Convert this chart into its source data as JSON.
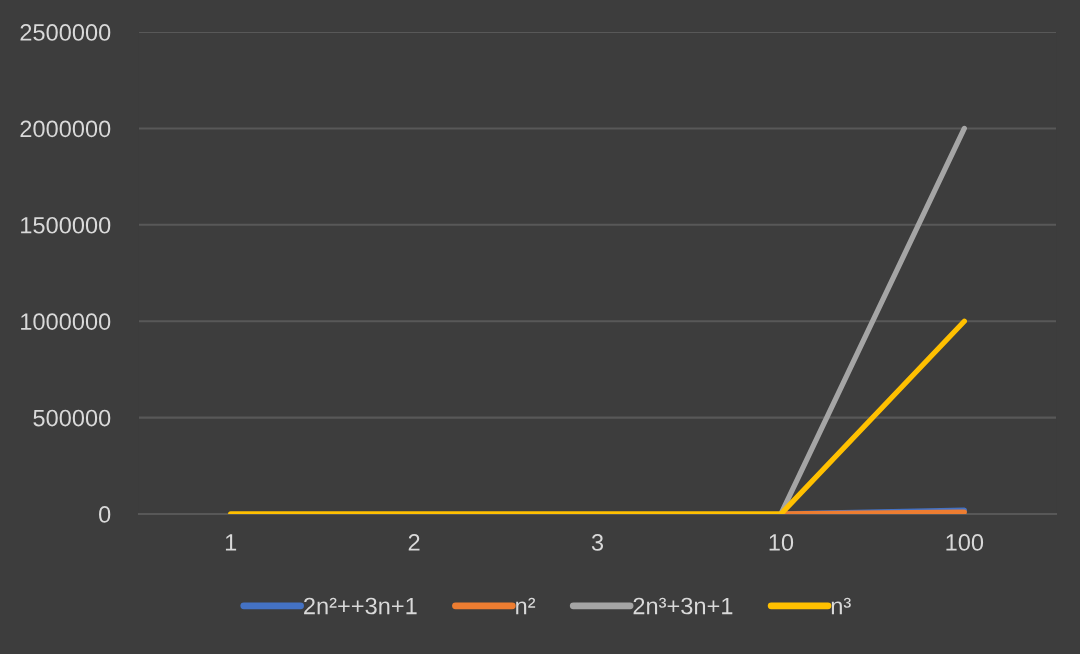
{
  "chart_data": {
    "type": "line",
    "categories": [
      "1",
      "2",
      "3",
      "10",
      "100"
    ],
    "series": [
      {
        "name": "2n²++3n+1",
        "color": "#4472c4",
        "values": [
          null,
          null,
          null,
          0,
          20000
        ]
      },
      {
        "name": "n²",
        "color": "#ed7d31",
        "values": [
          null,
          null,
          null,
          0,
          10000
        ]
      },
      {
        "name": "2n³+3n+1",
        "color": "#a5a5a5",
        "values": [
          null,
          null,
          null,
          0,
          2000000
        ]
      },
      {
        "name": "n³",
        "color": "#ffc000",
        "values": [
          0,
          0,
          0,
          0,
          1000000
        ]
      }
    ],
    "ylim": [
      0,
      2500000
    ],
    "yticks": [
      0,
      500000,
      1000000,
      1500000,
      2000000,
      2500000
    ],
    "grid": "y",
    "legend": "bottom",
    "marker": "none",
    "line_style": "solid"
  }
}
